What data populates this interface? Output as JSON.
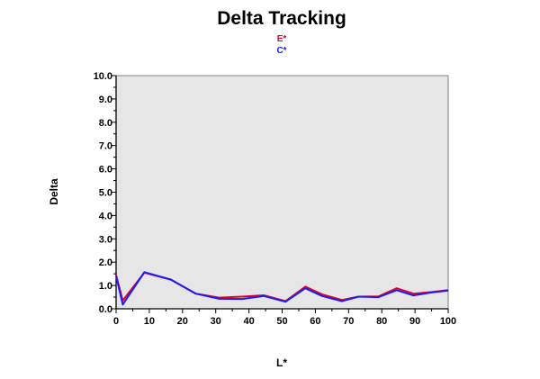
{
  "chart_data": {
    "type": "line",
    "title": "Delta Tracking",
    "xlabel": "L*",
    "ylabel": "Delta",
    "xlim": [
      0,
      100
    ],
    "ylim": [
      0,
      10
    ],
    "x_ticks": [
      "0",
      "10",
      "20",
      "30",
      "40",
      "50",
      "60",
      "70",
      "80",
      "90",
      "100"
    ],
    "y_ticks": [
      "0.0",
      "1.0",
      "2.0",
      "3.0",
      "4.0",
      "5.0",
      "6.0",
      "7.0",
      "8.0",
      "9.0",
      "10.0"
    ],
    "grid": false,
    "legend_position": "top-center",
    "plot_background": "#e6e6e6",
    "series": [
      {
        "name": "E*",
        "color": "#e0002a",
        "x": [
          0,
          2,
          8.5,
          16.5,
          24,
          31,
          38,
          44.5,
          51,
          57,
          62,
          68,
          73,
          79,
          84.5,
          89.5,
          95,
          100
        ],
        "y": [
          1.45,
          0.35,
          1.55,
          1.25,
          0.65,
          0.48,
          0.52,
          0.58,
          0.33,
          0.95,
          0.62,
          0.38,
          0.52,
          0.53,
          0.88,
          0.65,
          0.72,
          0.8
        ]
      },
      {
        "name": "C*",
        "color": "#1a1aff",
        "x": [
          0,
          2,
          8.5,
          16.5,
          24,
          31,
          38,
          44.5,
          51,
          57,
          62,
          68,
          73,
          79,
          84.5,
          89.5,
          95,
          100
        ],
        "y": [
          1.4,
          0.18,
          1.57,
          1.25,
          0.65,
          0.43,
          0.42,
          0.55,
          0.3,
          0.88,
          0.55,
          0.33,
          0.52,
          0.5,
          0.8,
          0.57,
          0.7,
          0.78
        ]
      }
    ]
  }
}
